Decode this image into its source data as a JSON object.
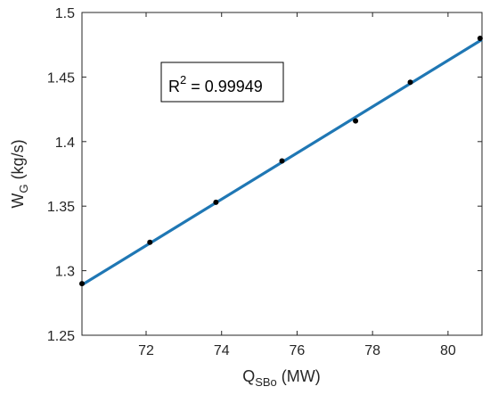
{
  "chart_data": {
    "type": "scatter",
    "title": "",
    "xlabel": {
      "main": "Q",
      "sub": "SBo",
      "unit": " (MW)"
    },
    "ylabel": {
      "main": "W",
      "sub": "G",
      "unit": " (kg/s)"
    },
    "xlim": [
      70.3,
      80.9
    ],
    "ylim": [
      1.25,
      1.5
    ],
    "xticks": [
      72,
      74,
      76,
      78,
      80
    ],
    "yticks": [
      1.25,
      1.3,
      1.35,
      1.4,
      1.45,
      1.5
    ],
    "xtick_labels": [
      "72",
      "74",
      "76",
      "78",
      "80"
    ],
    "ytick_labels": [
      "1.25",
      "1.3",
      "1.35",
      "1.4",
      "1.45",
      "1.5"
    ],
    "grid": false,
    "points": {
      "x": [
        70.3,
        72.1,
        73.85,
        75.6,
        77.55,
        79.0,
        80.85
      ],
      "y": [
        1.29,
        1.322,
        1.353,
        1.385,
        1.416,
        1.446,
        1.48
      ]
    },
    "fit_line": {
      "x": [
        70.3,
        80.9
      ],
      "y": [
        1.289,
        1.479
      ]
    },
    "annotation": {
      "base": "R",
      "sup": "2",
      "rest": " = 0.99949"
    },
    "colors": {
      "line": "#1f77b4",
      "points": "#000000",
      "axes": "#262626"
    }
  }
}
